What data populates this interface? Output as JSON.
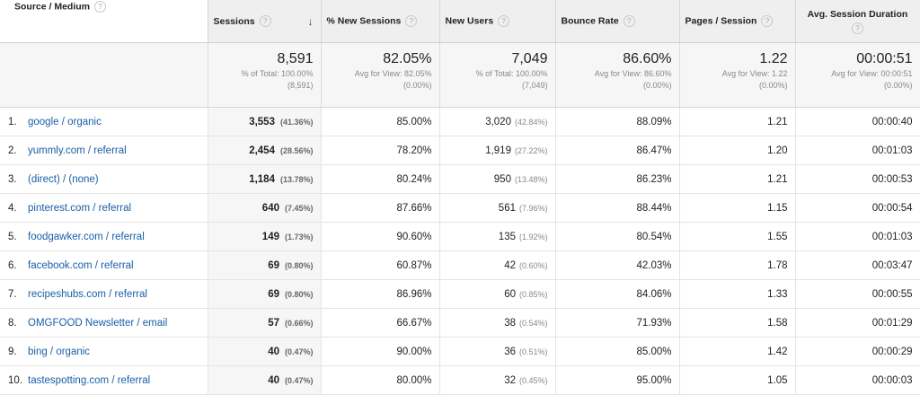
{
  "headers": {
    "source": "Source / Medium",
    "sessions": "Sessions",
    "new_sessions": "% New Sessions",
    "new_users": "New Users",
    "bounce": "Bounce Rate",
    "pages": "Pages / Session",
    "duration": "Avg. Session Duration",
    "help": "?",
    "sort_arrow": "↓"
  },
  "totals": {
    "sessions": {
      "value": "8,591",
      "line1": "% of Total: 100.00%",
      "line2": "(8,591)"
    },
    "new_sessions": {
      "value": "82.05%",
      "line1": "Avg for View: 82.05%",
      "line2": "(0.00%)"
    },
    "new_users": {
      "value": "7,049",
      "line1": "% of Total: 100.00%",
      "line2": "(7,049)"
    },
    "bounce": {
      "value": "86.60%",
      "line1": "Avg for View: 86.60%",
      "line2": "(0.00%)"
    },
    "pages": {
      "value": "1.22",
      "line1": "Avg for View: 1.22",
      "line2": "(0.00%)"
    },
    "duration": {
      "value": "00:00:51",
      "line1": "Avg for View: 00:00:51",
      "line2": "(0.00%)"
    }
  },
  "rows": [
    {
      "idx": "1.",
      "source": "google / organic",
      "sessions": "3,553",
      "sessions_pct": "(41.36%)",
      "new_sessions": "85.00%",
      "new_users": "3,020",
      "new_users_pct": "(42.84%)",
      "bounce": "88.09%",
      "pages": "1.21",
      "duration": "00:00:40"
    },
    {
      "idx": "2.",
      "source": "yummly.com / referral",
      "sessions": "2,454",
      "sessions_pct": "(28.56%)",
      "new_sessions": "78.20%",
      "new_users": "1,919",
      "new_users_pct": "(27.22%)",
      "bounce": "86.47%",
      "pages": "1.20",
      "duration": "00:01:03"
    },
    {
      "idx": "3.",
      "source": "(direct) / (none)",
      "sessions": "1,184",
      "sessions_pct": "(13.78%)",
      "new_sessions": "80.24%",
      "new_users": "950",
      "new_users_pct": "(13.48%)",
      "bounce": "86.23%",
      "pages": "1.21",
      "duration": "00:00:53"
    },
    {
      "idx": "4.",
      "source": "pinterest.com / referral",
      "sessions": "640",
      "sessions_pct": "(7.45%)",
      "new_sessions": "87.66%",
      "new_users": "561",
      "new_users_pct": "(7.96%)",
      "bounce": "88.44%",
      "pages": "1.15",
      "duration": "00:00:54"
    },
    {
      "idx": "5.",
      "source": "foodgawker.com / referral",
      "sessions": "149",
      "sessions_pct": "(1.73%)",
      "new_sessions": "90.60%",
      "new_users": "135",
      "new_users_pct": "(1.92%)",
      "bounce": "80.54%",
      "pages": "1.55",
      "duration": "00:01:03"
    },
    {
      "idx": "6.",
      "source": "facebook.com / referral",
      "sessions": "69",
      "sessions_pct": "(0.80%)",
      "new_sessions": "60.87%",
      "new_users": "42",
      "new_users_pct": "(0.60%)",
      "bounce": "42.03%",
      "pages": "1.78",
      "duration": "00:03:47"
    },
    {
      "idx": "7.",
      "source": "recipeshubs.com / referral",
      "sessions": "69",
      "sessions_pct": "(0.80%)",
      "new_sessions": "86.96%",
      "new_users": "60",
      "new_users_pct": "(0.85%)",
      "bounce": "84.06%",
      "pages": "1.33",
      "duration": "00:00:55"
    },
    {
      "idx": "8.",
      "source": "OMGFOOD Newsletter / email",
      "sessions": "57",
      "sessions_pct": "(0.66%)",
      "new_sessions": "66.67%",
      "new_users": "38",
      "new_users_pct": "(0.54%)",
      "bounce": "71.93%",
      "pages": "1.58",
      "duration": "00:01:29"
    },
    {
      "idx": "9.",
      "source": "bing / organic",
      "sessions": "40",
      "sessions_pct": "(0.47%)",
      "new_sessions": "90.00%",
      "new_users": "36",
      "new_users_pct": "(0.51%)",
      "bounce": "85.00%",
      "pages": "1.42",
      "duration": "00:00:29"
    },
    {
      "idx": "10.",
      "source": "tastespotting.com / referral",
      "sessions": "40",
      "sessions_pct": "(0.47%)",
      "new_sessions": "80.00%",
      "new_users": "32",
      "new_users_pct": "(0.45%)",
      "bounce": "95.00%",
      "pages": "1.05",
      "duration": "00:00:03"
    }
  ]
}
